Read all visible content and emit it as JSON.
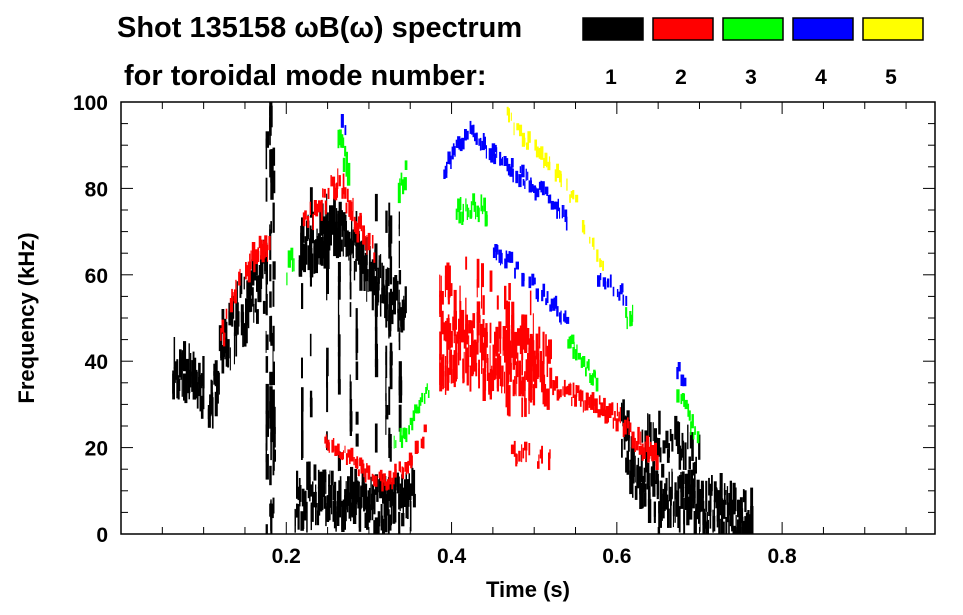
{
  "chart_data": {
    "type": "heatmap",
    "title_line1": "Shot 135158 ωB(ω) spectrum",
    "title_line2": "for toroidal mode number:",
    "xlabel": "Time (s)",
    "ylabel": "Frequency (kHz)",
    "xlim": [
      0,
      0.985
    ],
    "ylim": [
      0,
      100
    ],
    "xticks": [
      0.2,
      0.4,
      0.6,
      0.8
    ],
    "xtick_labels": [
      "0.2",
      "0.4",
      "0.6",
      "0.8"
    ],
    "x_minor_step": 0.05,
    "yticks": [
      0,
      20,
      40,
      60,
      80,
      100
    ],
    "ytick_labels": [
      "0",
      "20",
      "40",
      "60",
      "80",
      "100"
    ],
    "y_minor_step": 5,
    "legend": [
      {
        "mode": "1",
        "color": "#000000"
      },
      {
        "mode": "2",
        "color": "#ff0000"
      },
      {
        "mode": "3",
        "color": "#00ff00"
      },
      {
        "mode": "4",
        "color": "#0000ff"
      },
      {
        "mode": "5",
        "color": "#ffff00"
      }
    ],
    "features": [
      {
        "mode": 1,
        "width_khz": 9,
        "density": 1.0,
        "points": [
          [
            0.062,
            38
          ],
          [
            0.075,
            37
          ],
          [
            0.09,
            35
          ],
          [
            0.1,
            33
          ]
        ]
      },
      {
        "mode": 1,
        "width_khz": 14,
        "density": 0.9,
        "points": [
          [
            0.105,
            30
          ],
          [
            0.12,
            42
          ],
          [
            0.14,
            50
          ],
          [
            0.16,
            56
          ],
          [
            0.175,
            60
          ]
        ]
      },
      {
        "mode": 1,
        "width_khz": 100,
        "density": 0.35,
        "points": [
          [
            0.175,
            50
          ],
          [
            0.178,
            50
          ],
          [
            0.182,
            50
          ],
          [
            0.186,
            50
          ]
        ]
      },
      {
        "mode": 1,
        "width_khz": 10,
        "density": 1.0,
        "points": [
          [
            0.215,
            66
          ],
          [
            0.24,
            69
          ],
          [
            0.26,
            70
          ],
          [
            0.28,
            66
          ],
          [
            0.3,
            61
          ],
          [
            0.32,
            56
          ],
          [
            0.345,
            50
          ]
        ]
      },
      {
        "mode": 1,
        "width_khz": 11,
        "density": 1.0,
        "points": [
          [
            0.21,
            8
          ],
          [
            0.24,
            9
          ],
          [
            0.27,
            8
          ],
          [
            0.3,
            6
          ],
          [
            0.33,
            7
          ],
          [
            0.355,
            9
          ]
        ]
      },
      {
        "mode": 1,
        "width_khz": 60,
        "density": 0.12,
        "points": [
          [
            0.2,
            50
          ],
          [
            0.25,
            45
          ],
          [
            0.3,
            45
          ],
          [
            0.345,
            50
          ]
        ]
      },
      {
        "mode": 1,
        "width_khz": 12,
        "density": 1.0,
        "points": [
          [
            0.605,
            24
          ],
          [
            0.62,
            14
          ],
          [
            0.65,
            9
          ],
          [
            0.7,
            7
          ],
          [
            0.74,
            4
          ],
          [
            0.765,
            2
          ]
        ]
      },
      {
        "mode": 1,
        "width_khz": 8,
        "density": 0.9,
        "points": [
          [
            0.63,
            22
          ],
          [
            0.65,
            22
          ],
          [
            0.68,
            20
          ],
          [
            0.7,
            16
          ]
        ]
      },
      {
        "mode": 1,
        "width_khz": 80,
        "density": 0.08,
        "points": [
          [
            0.725,
            55
          ],
          [
            0.73,
            55
          ]
        ]
      },
      {
        "mode": 2,
        "width_khz": 5,
        "density": 0.8,
        "points": [
          [
            0.12,
            45
          ],
          [
            0.135,
            54
          ],
          [
            0.15,
            61
          ],
          [
            0.165,
            65
          ],
          [
            0.18,
            67
          ]
        ]
      },
      {
        "mode": 2,
        "width_khz": 40,
        "density": 0.15,
        "points": [
          [
            0.125,
            80
          ],
          [
            0.13,
            80
          ]
        ]
      },
      {
        "mode": 2,
        "width_khz": 5,
        "density": 0.9,
        "points": [
          [
            0.22,
            71
          ],
          [
            0.24,
            76
          ],
          [
            0.255,
            80
          ],
          [
            0.265,
            80
          ],
          [
            0.285,
            72
          ],
          [
            0.307,
            65
          ]
        ]
      },
      {
        "mode": 2,
        "width_khz": 3,
        "density": 0.8,
        "points": [
          [
            0.246,
            22
          ],
          [
            0.265,
            19
          ],
          [
            0.283,
            16
          ],
          [
            0.3,
            14
          ],
          [
            0.32,
            12
          ],
          [
            0.35,
            17
          ],
          [
            0.368,
            24
          ]
        ]
      },
      {
        "mode": 2,
        "width_khz": 14,
        "density": 1.0,
        "points": [
          [
            0.385,
            42
          ],
          [
            0.42,
            43
          ],
          [
            0.46,
            41
          ],
          [
            0.5,
            39
          ],
          [
            0.52,
            37
          ]
        ]
      },
      {
        "mode": 2,
        "width_khz": 26,
        "density": 0.35,
        "points": [
          [
            0.385,
            48
          ],
          [
            0.42,
            50
          ],
          [
            0.46,
            44
          ],
          [
            0.5,
            40
          ]
        ]
      },
      {
        "mode": 2,
        "width_khz": 4,
        "density": 0.9,
        "points": [
          [
            0.52,
            34
          ],
          [
            0.55,
            32
          ],
          [
            0.58,
            29
          ],
          [
            0.6,
            27
          ],
          [
            0.63,
            20
          ],
          [
            0.65,
            17
          ]
        ]
      },
      {
        "mode": 2,
        "width_khz": 4,
        "density": 0.4,
        "points": [
          [
            0.47,
            19
          ],
          [
            0.5,
            18
          ],
          [
            0.52,
            17
          ]
        ]
      },
      {
        "mode": 3,
        "width_khz": 6,
        "density": 0.9,
        "points": [
          [
            0.262,
            90
          ],
          [
            0.27,
            86
          ],
          [
            0.275,
            84
          ]
        ]
      },
      {
        "mode": 3,
        "width_khz": 5,
        "density": 0.8,
        "points": [
          [
            0.2,
            61
          ],
          [
            0.21,
            64
          ]
        ]
      },
      {
        "mode": 3,
        "width_khz": 5,
        "density": 0.8,
        "points": [
          [
            0.335,
            78
          ],
          [
            0.345,
            84
          ]
        ]
      },
      {
        "mode": 3,
        "width_khz": 3,
        "density": 0.8,
        "points": [
          [
            0.33,
            20
          ],
          [
            0.344,
            24
          ],
          [
            0.36,
            30
          ],
          [
            0.373,
            34
          ]
        ]
      },
      {
        "mode": 3,
        "width_khz": 4,
        "density": 0.9,
        "points": [
          [
            0.405,
            74
          ],
          [
            0.42,
            76
          ],
          [
            0.435,
            75
          ],
          [
            0.445,
            73
          ]
        ]
      },
      {
        "mode": 3,
        "width_khz": 3,
        "density": 0.8,
        "points": [
          [
            0.54,
            45
          ],
          [
            0.551,
            42
          ],
          [
            0.565,
            38
          ],
          [
            0.576,
            35
          ]
        ]
      },
      {
        "mode": 3,
        "width_khz": 4,
        "density": 0.9,
        "points": [
          [
            0.61,
            50
          ],
          [
            0.62,
            49
          ]
        ]
      },
      {
        "mode": 3,
        "width_khz": 3,
        "density": 0.8,
        "points": [
          [
            0.672,
            33
          ],
          [
            0.682,
            29
          ],
          [
            0.692,
            24
          ],
          [
            0.7,
            19
          ]
        ]
      },
      {
        "mode": 4,
        "width_khz": 3,
        "density": 0.9,
        "points": [
          [
            0.39,
            84
          ],
          [
            0.405,
            89
          ],
          [
            0.42,
            93
          ],
          [
            0.445,
            89
          ],
          [
            0.47,
            85
          ],
          [
            0.495,
            81
          ],
          [
            0.52,
            77
          ],
          [
            0.54,
            73
          ]
        ]
      },
      {
        "mode": 4,
        "width_khz": 3,
        "density": 0.7,
        "points": [
          [
            0.45,
            66
          ],
          [
            0.474,
            62
          ],
          [
            0.5,
            57
          ],
          [
            0.52,
            53
          ],
          [
            0.54,
            50
          ]
        ]
      },
      {
        "mode": 4,
        "width_khz": 3,
        "density": 0.7,
        "points": [
          [
            0.576,
            60
          ],
          [
            0.595,
            57
          ],
          [
            0.612,
            55
          ]
        ]
      },
      {
        "mode": 4,
        "width_khz": 3,
        "density": 0.7,
        "points": [
          [
            0.672,
            38
          ],
          [
            0.682,
            35
          ]
        ]
      },
      {
        "mode": 4,
        "width_khz": 4,
        "density": 0.7,
        "points": [
          [
            0.266,
            96
          ],
          [
            0.272,
            93
          ]
        ]
      },
      {
        "mode": 5,
        "width_khz": 3,
        "density": 0.6,
        "points": [
          [
            0.465,
            97
          ],
          [
            0.485,
            92
          ],
          [
            0.502,
            89
          ],
          [
            0.523,
            84
          ],
          [
            0.553,
            76
          ]
        ]
      },
      {
        "mode": 5,
        "width_khz": 3,
        "density": 0.6,
        "points": [
          [
            0.556,
            72
          ],
          [
            0.563,
            69
          ],
          [
            0.575,
            65
          ],
          [
            0.584,
            62
          ]
        ]
      }
    ]
  }
}
